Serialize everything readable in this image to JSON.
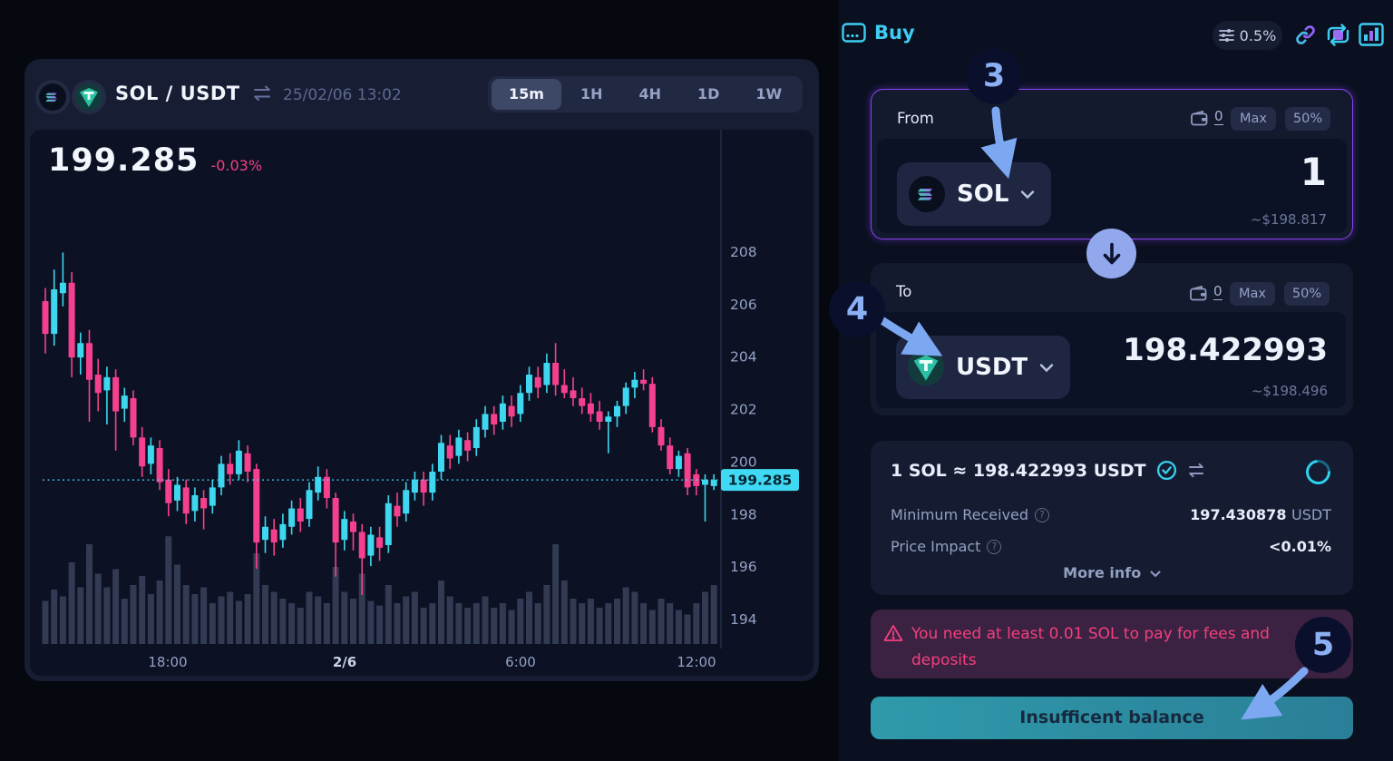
{
  "chart": {
    "pair": "SOL / USDT",
    "timestamp": "25/02/06 13:02",
    "price": "199.285",
    "change": "-0.03%",
    "timeframes": [
      "15m",
      "1H",
      "4H",
      "1D",
      "1W"
    ],
    "active_timeframe": "15m",
    "price_tag": "199.285"
  },
  "chart_data": {
    "type": "candlestick",
    "title": "SOL / USDT 15m",
    "y_ticks": [
      208,
      206,
      204,
      202,
      200,
      198,
      196,
      194
    ],
    "ylim": [
      193.5,
      208.6
    ],
    "x_labels": [
      {
        "label": "18:00",
        "x": 152,
        "bold": false
      },
      {
        "label": "2/6",
        "x": 347,
        "bold": true
      },
      {
        "label": "6:00",
        "x": 541,
        "bold": false
      },
      {
        "label": "12:00",
        "x": 735,
        "bold": false
      }
    ],
    "current_price": 199.285,
    "grid": false,
    "candles": [
      [
        206.1,
        206.6,
        204.1,
        204.85
      ],
      [
        204.85,
        207.3,
        204.4,
        206.55
      ],
      [
        206.4,
        207.95,
        205.9,
        206.8
      ],
      [
        206.8,
        207.2,
        203.2,
        203.95
      ],
      [
        203.95,
        204.9,
        203.3,
        204.5
      ],
      [
        204.5,
        205.0,
        201.5,
        203.1
      ],
      [
        203.3,
        203.9,
        201.9,
        202.6
      ],
      [
        202.7,
        203.6,
        201.4,
        203.2
      ],
      [
        203.2,
        203.5,
        200.4,
        201.9
      ],
      [
        202.0,
        202.8,
        201.5,
        202.5
      ],
      [
        202.4,
        202.7,
        200.6,
        200.9
      ],
      [
        200.9,
        201.3,
        199.4,
        199.8
      ],
      [
        199.9,
        200.9,
        199.5,
        200.6
      ],
      [
        200.5,
        200.8,
        198.9,
        199.2
      ],
      [
        199.3,
        199.7,
        197.9,
        198.4
      ],
      [
        198.5,
        199.4,
        198.1,
        199.1
      ],
      [
        199.0,
        199.3,
        197.6,
        198.0
      ],
      [
        198.1,
        199.0,
        197.7,
        198.7
      ],
      [
        198.6,
        198.9,
        197.4,
        198.2
      ],
      [
        198.3,
        199.3,
        198.0,
        199.0
      ],
      [
        199.0,
        200.2,
        198.7,
        199.9
      ],
      [
        199.9,
        200.3,
        199.1,
        199.5
      ],
      [
        199.5,
        200.8,
        199.3,
        200.4
      ],
      [
        200.3,
        200.6,
        199.2,
        199.6
      ],
      [
        199.7,
        199.9,
        195.9,
        196.9
      ],
      [
        197.0,
        197.9,
        196.5,
        197.5
      ],
      [
        197.4,
        197.8,
        196.4,
        196.9
      ],
      [
        197.0,
        198.0,
        196.7,
        197.6
      ],
      [
        197.5,
        198.5,
        197.2,
        198.2
      ],
      [
        198.2,
        198.6,
        197.3,
        197.7
      ],
      [
        197.8,
        199.2,
        197.5,
        198.9
      ],
      [
        198.8,
        199.8,
        198.5,
        199.4
      ],
      [
        199.4,
        199.7,
        198.2,
        198.6
      ],
      [
        198.6,
        198.8,
        195.6,
        196.9
      ],
      [
        197.0,
        198.1,
        196.6,
        197.8
      ],
      [
        197.7,
        198.0,
        196.6,
        197.3
      ],
      [
        197.3,
        197.6,
        194.9,
        196.3
      ],
      [
        196.4,
        197.5,
        196.0,
        197.2
      ],
      [
        197.1,
        197.5,
        196.2,
        196.7
      ],
      [
        196.8,
        198.7,
        196.5,
        198.4
      ],
      [
        198.3,
        198.8,
        197.5,
        197.9
      ],
      [
        198.0,
        199.2,
        197.7,
        198.9
      ],
      [
        198.8,
        199.6,
        198.5,
        199.3
      ],
      [
        199.3,
        199.6,
        198.3,
        198.8
      ],
      [
        198.8,
        199.9,
        198.5,
        199.6
      ],
      [
        199.6,
        201.0,
        199.3,
        200.7
      ],
      [
        200.6,
        201.0,
        199.7,
        200.1
      ],
      [
        200.2,
        201.2,
        199.9,
        200.9
      ],
      [
        200.8,
        201.1,
        200.0,
        200.4
      ],
      [
        200.5,
        201.6,
        200.2,
        201.3
      ],
      [
        201.2,
        202.1,
        200.9,
        201.8
      ],
      [
        201.8,
        202.1,
        201.0,
        201.4
      ],
      [
        201.5,
        202.5,
        201.2,
        202.2
      ],
      [
        202.1,
        202.5,
        201.3,
        201.7
      ],
      [
        201.8,
        202.9,
        201.5,
        202.6
      ],
      [
        202.6,
        203.6,
        202.3,
        203.3
      ],
      [
        203.2,
        203.6,
        202.4,
        202.8
      ],
      [
        202.9,
        204.1,
        202.6,
        203.75
      ],
      [
        203.75,
        204.5,
        202.5,
        202.9
      ],
      [
        202.9,
        203.5,
        202.4,
        202.6
      ],
      [
        202.7,
        203.2,
        202.1,
        202.4
      ],
      [
        202.4,
        202.8,
        201.8,
        202.1
      ],
      [
        202.2,
        202.6,
        201.5,
        201.8
      ],
      [
        201.9,
        202.3,
        201.2,
        201.5
      ],
      [
        201.5,
        201.9,
        200.3,
        201.7
      ],
      [
        201.7,
        202.3,
        201.3,
        202.1
      ],
      [
        202.1,
        203.0,
        201.8,
        202.8
      ],
      [
        202.8,
        203.4,
        202.4,
        203.1
      ],
      [
        203.1,
        203.5,
        202.7,
        202.95
      ],
      [
        202.95,
        203.2,
        201.1,
        201.3
      ],
      [
        201.3,
        201.6,
        200.4,
        200.6
      ],
      [
        200.6,
        200.9,
        199.5,
        199.7
      ],
      [
        199.7,
        200.4,
        199.4,
        200.2
      ],
      [
        200.3,
        200.5,
        198.7,
        199.0
      ],
      [
        199.5,
        199.7,
        198.7,
        199.05
      ],
      [
        199.1,
        199.5,
        197.7,
        199.3
      ],
      [
        199.05,
        199.5,
        198.9,
        199.285
      ]
    ],
    "volume": [
      0.38,
      0.48,
      0.42,
      0.72,
      0.5,
      0.88,
      0.62,
      0.5,
      0.66,
      0.4,
      0.52,
      0.6,
      0.44,
      0.56,
      0.95,
      0.7,
      0.52,
      0.44,
      0.5,
      0.36,
      0.42,
      0.46,
      0.38,
      0.44,
      0.8,
      0.52,
      0.46,
      0.4,
      0.36,
      0.32,
      0.46,
      0.42,
      0.36,
      0.68,
      0.46,
      0.4,
      0.62,
      0.38,
      0.34,
      0.52,
      0.36,
      0.42,
      0.46,
      0.32,
      0.36,
      0.56,
      0.42,
      0.36,
      0.32,
      0.36,
      0.42,
      0.32,
      0.36,
      0.3,
      0.4,
      0.46,
      0.36,
      0.52,
      0.88,
      0.56,
      0.4,
      0.36,
      0.4,
      0.32,
      0.36,
      0.4,
      0.5,
      0.46,
      0.36,
      0.3,
      0.4,
      0.36,
      0.3,
      0.26,
      0.36,
      0.46,
      0.52
    ]
  },
  "swap": {
    "buy_label": "Buy",
    "slippage": "0.5%",
    "from": {
      "label": "From",
      "balance": "0",
      "max": "Max",
      "half": "50%",
      "token": "SOL",
      "amount": "1",
      "usd": "~$198.817"
    },
    "to": {
      "label": "To",
      "balance": "0",
      "max": "Max",
      "half": "50%",
      "token": "USDT",
      "amount": "198.422993",
      "usd": "~$198.496"
    },
    "info": {
      "rate": "1 SOL ≈ 198.422993 USDT",
      "min_received_label": "Minimum Received",
      "min_received_value": "197.430878",
      "min_received_unit": "USDT",
      "price_impact_label": "Price Impact",
      "price_impact_value": "<0.01%",
      "more_info": "More info"
    },
    "warning": "You need at least 0.01 SOL to pay for fees and deposits",
    "button": "Insufficent balance"
  },
  "annotations": {
    "steps": [
      "3",
      "4",
      "5"
    ]
  },
  "colors": {
    "up": "#3ed6f0",
    "down": "#f5408f",
    "volume": "#323b53",
    "axis_text": "#94a1c7",
    "axis_line": "#232c45",
    "price_line": "#40d9f3",
    "tag_bg": "#40d9f3",
    "tag_text": "#052430",
    "accent_cyan": "#3ecdf2",
    "accent_purple": "#8e62f2",
    "warn_pink": "#f2417d"
  }
}
